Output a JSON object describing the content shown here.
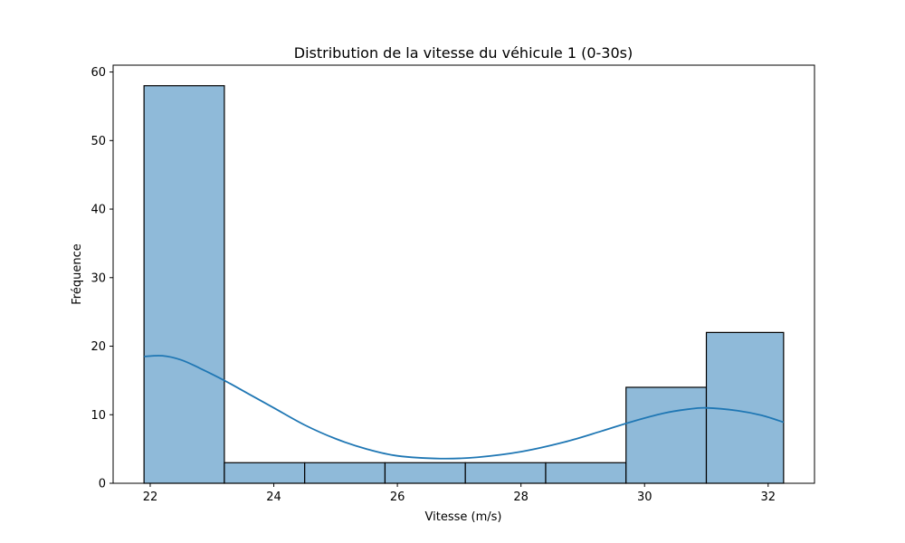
{
  "chart_data": {
    "type": "bar",
    "title": "Distribution de la vitesse du véhicule 1 (0-30s)",
    "xlabel": "Vitesse (m/s)",
    "ylabel": "Fréquence",
    "xlim": [
      21.4,
      32.75
    ],
    "ylim": [
      0,
      61
    ],
    "xticks": [
      22,
      24,
      26,
      28,
      30,
      32
    ],
    "yticks": [
      0,
      10,
      20,
      30,
      40,
      50,
      60
    ],
    "bin_edges": [
      21.9,
      23.2,
      24.5,
      25.8,
      27.1,
      28.4,
      29.7,
      31.0,
      32.25
    ],
    "values": [
      58,
      3,
      3,
      3,
      3,
      3,
      14,
      22
    ],
    "kde": {
      "x": [
        21.9,
        22.2,
        22.5,
        22.8,
        23.2,
        23.6,
        24.0,
        24.5,
        25.0,
        25.5,
        26.0,
        26.7,
        27.3,
        28.0,
        28.7,
        29.3,
        29.8,
        30.3,
        30.7,
        31.0,
        31.5,
        31.9,
        32.25
      ],
      "y": [
        18.5,
        18.6,
        18.0,
        16.8,
        15.0,
        13.0,
        11.0,
        8.5,
        6.5,
        5.0,
        4.0,
        3.6,
        3.8,
        4.6,
        6.0,
        7.6,
        9.0,
        10.2,
        10.8,
        11.0,
        10.6,
        9.9,
        8.9
      ]
    },
    "grid": false,
    "colors": {
      "bar_fill": "#8fbad9",
      "bar_edge": "#000000",
      "kde_line": "#1f77b4"
    }
  }
}
